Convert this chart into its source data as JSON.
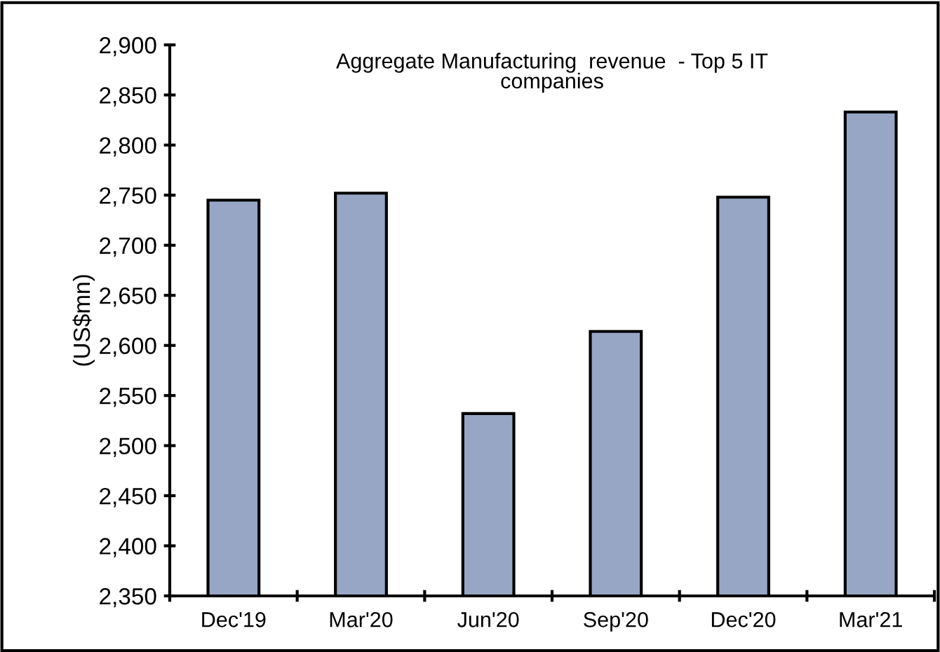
{
  "chart_data": {
    "type": "bar",
    "title": "Aggregate Manufacturing  revenue  - Top 5 IT\ncompanies",
    "ylabel": "(US$mn)",
    "categories": [
      "Dec'19",
      "Mar'20",
      "Jun'20",
      "Sep'20",
      "Dec'20",
      "Mar'21"
    ],
    "values": [
      2745,
      2752,
      2532,
      2614,
      2748,
      2833
    ],
    "color": "#97a6c4",
    "ylim": [
      2350,
      2900
    ],
    "yticks": [
      {
        "value": 2350,
        "label": "2,350"
      },
      {
        "value": 2400,
        "label": "2,400"
      },
      {
        "value": 2450,
        "label": "2,450"
      },
      {
        "value": 2500,
        "label": "2,500"
      },
      {
        "value": 2550,
        "label": "2,550"
      },
      {
        "value": 2600,
        "label": "2,600"
      },
      {
        "value": 2650,
        "label": "2,650"
      },
      {
        "value": 2700,
        "label": "2,700"
      },
      {
        "value": 2750,
        "label": "2,750"
      },
      {
        "value": 2800,
        "label": "2,800"
      },
      {
        "value": 2850,
        "label": "2,850"
      },
      {
        "value": 2900,
        "label": "2,900"
      }
    ],
    "grid": false
  }
}
